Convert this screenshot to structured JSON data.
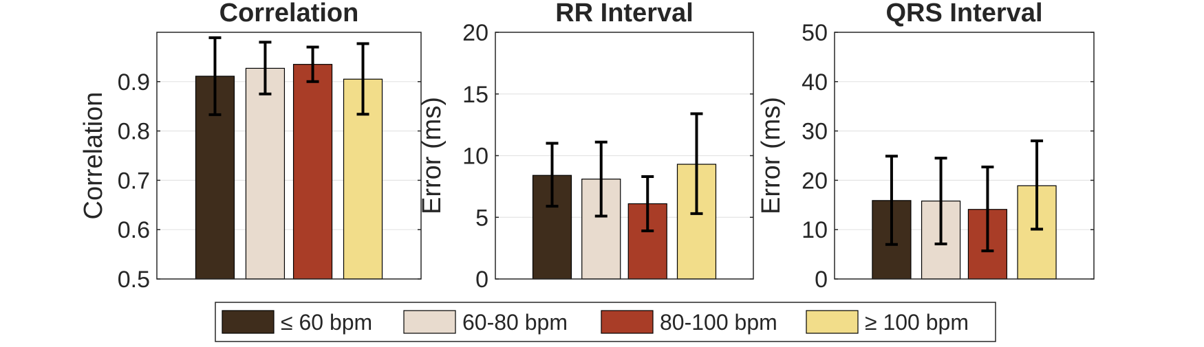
{
  "legend": {
    "position": "bottom-center",
    "entries": [
      "≤ 60 bpm",
      "60-80 bpm",
      "80-100 bpm",
      "≥ 100 bpm"
    ],
    "colors": [
      "#3f2d1c",
      "#e8dbce",
      "#a93d27",
      "#f2dd8a"
    ]
  },
  "chart_data": [
    {
      "type": "bar",
      "title": "Correlation",
      "ylabel": "Correlation",
      "xlabel": "",
      "ylim": [
        0.5,
        1.0
      ],
      "yticks": [
        "0.5",
        "0.6",
        "0.7",
        "0.8",
        "0.9"
      ],
      "grid": true,
      "series": [
        {
          "name": "≤ 60 bpm",
          "value": 0.911,
          "error_low": 0.833,
          "error_high": 0.989
        },
        {
          "name": "60-80 bpm",
          "value": 0.927,
          "error_low": 0.875,
          "error_high": 0.98
        },
        {
          "name": "80-100 bpm",
          "value": 0.935,
          "error_low": 0.9,
          "error_high": 0.97
        },
        {
          "name": "≥ 100 bpm",
          "value": 0.905,
          "error_low": 0.834,
          "error_high": 0.977
        }
      ]
    },
    {
      "type": "bar",
      "title": "RR Interval",
      "ylabel": "Error (ms)",
      "xlabel": "",
      "ylim": [
        0,
        20
      ],
      "yticks": [
        "0",
        "5",
        "10",
        "15",
        "20"
      ],
      "grid": true,
      "series": [
        {
          "name": "≤ 60 bpm",
          "value": 8.4,
          "error_low": 5.9,
          "error_high": 11.0
        },
        {
          "name": "60-80 bpm",
          "value": 8.1,
          "error_low": 5.1,
          "error_high": 11.1
        },
        {
          "name": "80-100 bpm",
          "value": 6.1,
          "error_low": 3.9,
          "error_high": 8.3
        },
        {
          "name": "≥ 100 bpm",
          "value": 9.3,
          "error_low": 5.3,
          "error_high": 13.4
        }
      ]
    },
    {
      "type": "bar",
      "title": "QRS Interval",
      "ylabel": "Error (ms)",
      "xlabel": "",
      "ylim": [
        0,
        50
      ],
      "yticks": [
        "0",
        "10",
        "20",
        "30",
        "40",
        "50"
      ],
      "grid": true,
      "series": [
        {
          "name": "≤ 60 bpm",
          "value": 15.9,
          "error_low": 7.0,
          "error_high": 24.9
        },
        {
          "name": "60-80 bpm",
          "value": 15.8,
          "error_low": 7.1,
          "error_high": 24.5
        },
        {
          "name": "80-100 bpm",
          "value": 14.1,
          "error_low": 5.7,
          "error_high": 22.7
        },
        {
          "name": "≥ 100 bpm",
          "value": 18.9,
          "error_low": 10.1,
          "error_high": 28.0
        }
      ]
    }
  ]
}
